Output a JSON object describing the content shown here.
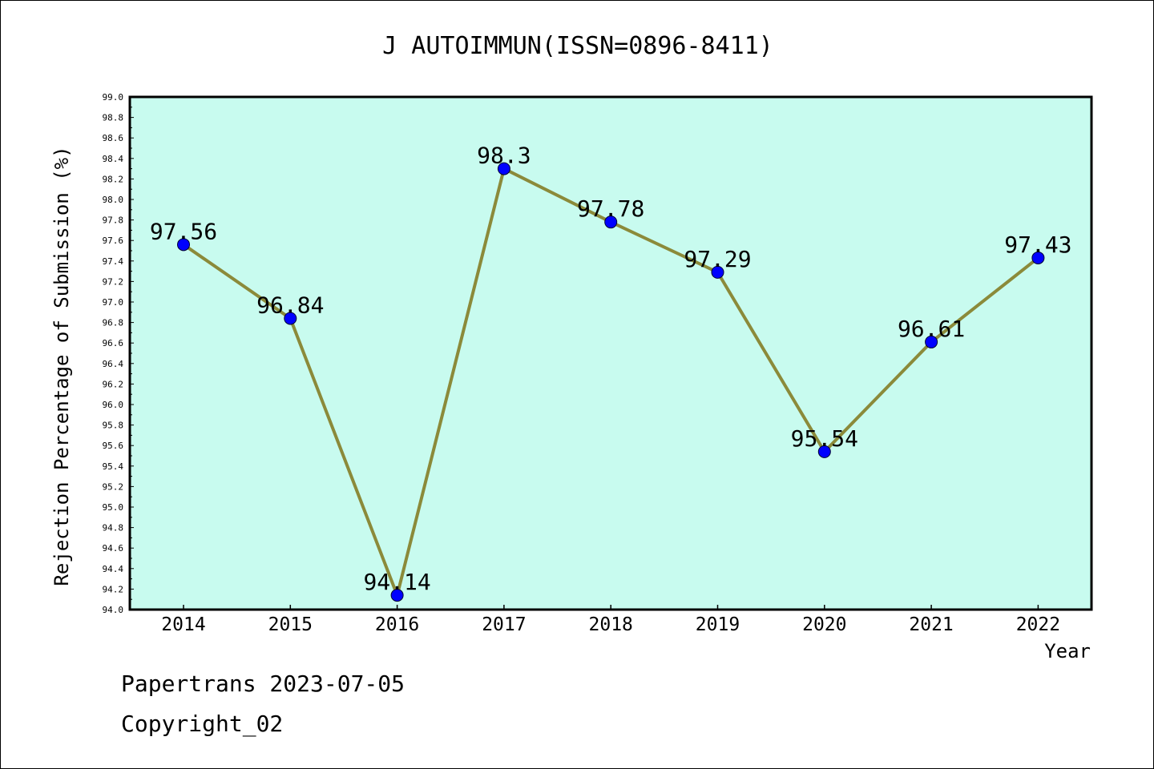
{
  "chart_data": {
    "type": "line",
    "title": "J AUTOIMMUN(ISSN=0896-8411)",
    "xlabel": "Year",
    "ylabel": "Rejection Percentage of Submission (%)",
    "categories": [
      "2014",
      "2015",
      "2016",
      "2017",
      "2018",
      "2019",
      "2020",
      "2021",
      "2022"
    ],
    "values": [
      97.56,
      96.84,
      94.14,
      98.3,
      97.78,
      97.29,
      95.54,
      96.61,
      97.43
    ],
    "data_labels": [
      "97.56",
      "96.84",
      "94.14",
      "98.3",
      "97.78",
      "97.29",
      "95.54",
      "96.61",
      "97.43"
    ],
    "ylim": [
      94.0,
      99.0
    ],
    "y_ticks": [
      "94.0",
      "94.2",
      "94.4",
      "94.6",
      "94.8",
      "95.0",
      "95.2",
      "95.4",
      "95.6",
      "95.8",
      "96.0",
      "96.2",
      "96.4",
      "96.6",
      "96.8",
      "97.0",
      "97.2",
      "97.4",
      "97.6",
      "97.8",
      "98.0",
      "98.2",
      "98.4",
      "98.6",
      "98.8",
      "99.0"
    ],
    "grid": false,
    "colors": {
      "plot_background": "#c8fbef",
      "line": "#8b8a3a",
      "marker": "#0000ff"
    }
  },
  "footer": {
    "line1": "Papertrans 2023-07-05",
    "line2": "Copyright_02"
  }
}
